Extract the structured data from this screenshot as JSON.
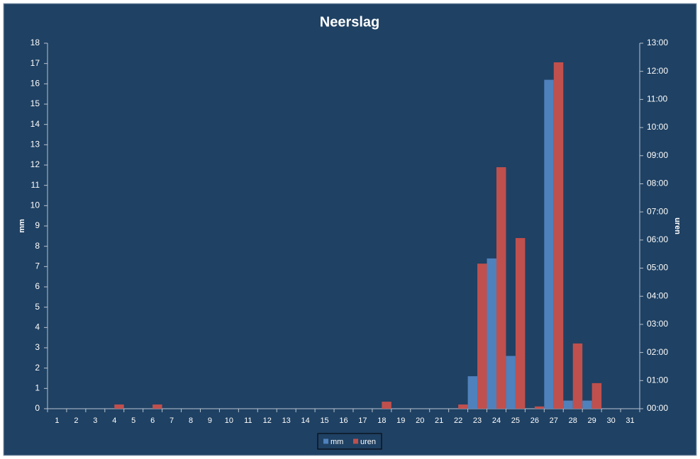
{
  "chart_data": {
    "type": "bar",
    "title": "Neerslag",
    "categories": [
      "1",
      "2",
      "3",
      "4",
      "5",
      "6",
      "7",
      "8",
      "9",
      "10",
      "11",
      "12",
      "13",
      "14",
      "15",
      "16",
      "17",
      "18",
      "19",
      "20",
      "21",
      "22",
      "23",
      "24",
      "25",
      "26",
      "27",
      "28",
      "29",
      "30",
      "31"
    ],
    "series": [
      {
        "name": "mm",
        "color": "#4f81bd",
        "values": [
          0,
          0,
          0,
          0,
          0,
          0,
          0,
          0,
          0,
          0,
          0,
          0,
          0,
          0,
          0,
          0,
          0,
          0,
          0,
          0,
          0,
          0,
          1.6,
          7.4,
          2.6,
          0,
          16.2,
          0.4,
          0.4,
          0,
          0
        ]
      },
      {
        "name": "uren",
        "color": "#c0504d",
        "axis": "y2",
        "values": [
          0,
          0,
          0,
          0.15,
          0,
          0.15,
          0,
          0,
          0,
          0,
          0,
          0,
          0,
          0,
          0,
          0,
          0,
          0.25,
          0,
          0,
          0,
          0.15,
          5.16,
          8.59,
          6.07,
          0.08,
          12.32,
          2.32,
          0.91,
          0,
          0
        ]
      }
    ],
    "ylabel": "mm",
    "y2label": "uren",
    "ylim": [
      0,
      18
    ],
    "yticks": [
      0,
      1,
      2,
      3,
      4,
      5,
      6,
      7,
      8,
      9,
      10,
      11,
      12,
      13,
      14,
      15,
      16,
      17,
      18
    ],
    "y2lim": [
      0,
      13
    ],
    "y2ticks": [
      {
        "value": 0,
        "label": "00:00"
      },
      {
        "value": 1,
        "label": "01:00"
      },
      {
        "value": 2,
        "label": "02:00"
      },
      {
        "value": 3,
        "label": "03:00"
      },
      {
        "value": 4,
        "label": "04:00"
      },
      {
        "value": 5,
        "label": "05:00"
      },
      {
        "value": 6,
        "label": "06:00"
      },
      {
        "value": 7,
        "label": "07:00"
      },
      {
        "value": 8,
        "label": "08:00"
      },
      {
        "value": 9,
        "label": "09:00"
      },
      {
        "value": 10,
        "label": "10:00"
      },
      {
        "value": 11,
        "label": "11:00"
      },
      {
        "value": 12,
        "label": "12:00"
      },
      {
        "value": 13,
        "label": "13:00"
      }
    ],
    "legend": "bottom"
  }
}
